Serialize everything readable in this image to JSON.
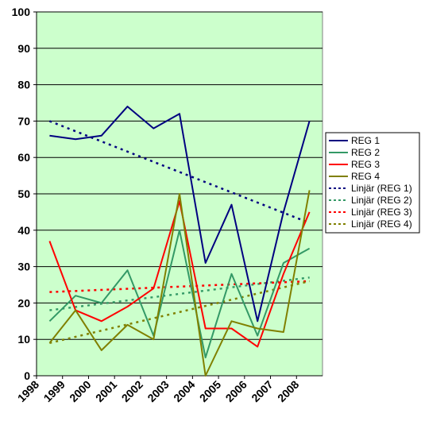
{
  "chart_data": {
    "type": "line",
    "x": [
      "1998",
      "1999",
      "2000",
      "2001",
      "2002",
      "2003",
      "2004",
      "2005",
      "2006",
      "2007",
      "2008"
    ],
    "ylim": [
      0,
      100
    ],
    "yticks": [
      0,
      10,
      20,
      30,
      40,
      50,
      60,
      70,
      80,
      90,
      100
    ],
    "grid": true,
    "plot_background": "#ccffcc",
    "legend_position": "right",
    "series": [
      {
        "name": "REG 1",
        "color": "#000080",
        "values": [
          66,
          65,
          66,
          74,
          68,
          72,
          31,
          47,
          15,
          45,
          70
        ]
      },
      {
        "name": "REG 2",
        "color": "#339966",
        "values": [
          15,
          22,
          20,
          29,
          11,
          40,
          5,
          28,
          11,
          31,
          35
        ]
      },
      {
        "name": "REG 3",
        "color": "#ff0000",
        "values": [
          37,
          18,
          15,
          19,
          24,
          48,
          13,
          13,
          8,
          28,
          45
        ]
      },
      {
        "name": "REG 4",
        "color": "#808000",
        "values": [
          9,
          18,
          7,
          14,
          10,
          50,
          0,
          15,
          13,
          12,
          51
        ]
      }
    ],
    "trendlines": [
      {
        "name": "Linjär (REG 1)",
        "color": "#000080",
        "start": 70,
        "end": 42
      },
      {
        "name": "Linjär (REG 2)",
        "color": "#339966",
        "start": 18,
        "end": 27
      },
      {
        "name": "Linjär (REG 3)",
        "color": "#ff0000",
        "start": 23,
        "end": 26
      },
      {
        "name": "Linjär (REG 4)",
        "color": "#808000",
        "start": 9,
        "end": 26
      }
    ]
  }
}
